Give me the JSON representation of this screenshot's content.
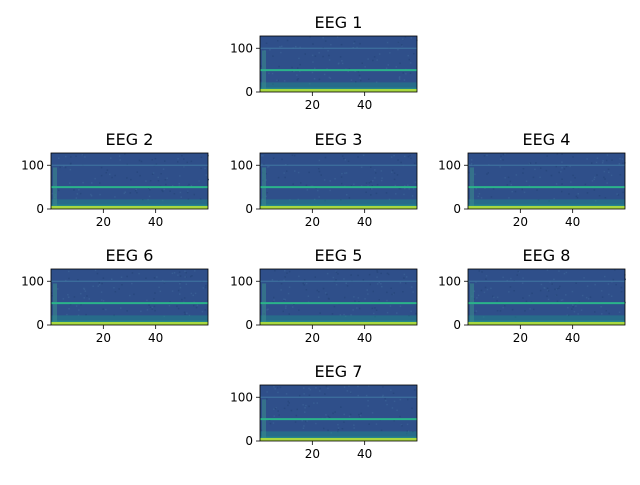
{
  "chart_data": [
    {
      "type": "heatmap",
      "title": "EEG 1",
      "xticks": [
        20,
        40
      ],
      "yticks": [
        0,
        100
      ],
      "xlim": [
        0,
        60
      ],
      "ylim": [
        0,
        128
      ],
      "line_hz": [
        50,
        100
      ],
      "colormap": "viridis"
    },
    {
      "type": "heatmap",
      "title": "EEG 2",
      "xticks": [
        20,
        40
      ],
      "yticks": [
        0,
        100
      ],
      "xlim": [
        0,
        60
      ],
      "ylim": [
        0,
        128
      ],
      "line_hz": [
        50,
        100
      ],
      "colormap": "viridis"
    },
    {
      "type": "heatmap",
      "title": "EEG 3",
      "xticks": [
        20,
        40
      ],
      "yticks": [
        0,
        100
      ],
      "xlim": [
        0,
        60
      ],
      "ylim": [
        0,
        128
      ],
      "line_hz": [
        50,
        100
      ],
      "colormap": "viridis"
    },
    {
      "type": "heatmap",
      "title": "EEG 4",
      "xticks": [
        20,
        40
      ],
      "yticks": [
        0,
        100
      ],
      "xlim": [
        0,
        60
      ],
      "ylim": [
        0,
        128
      ],
      "line_hz": [
        50,
        100
      ],
      "colormap": "viridis"
    },
    {
      "type": "heatmap",
      "title": "EEG 6",
      "xticks": [
        20,
        40
      ],
      "yticks": [
        0,
        100
      ],
      "xlim": [
        0,
        60
      ],
      "ylim": [
        0,
        128
      ],
      "line_hz": [
        50,
        100
      ],
      "colormap": "viridis"
    },
    {
      "type": "heatmap",
      "title": "EEG 5",
      "xticks": [
        20,
        40
      ],
      "yticks": [
        0,
        100
      ],
      "xlim": [
        0,
        60
      ],
      "ylim": [
        0,
        128
      ],
      "line_hz": [
        50,
        100
      ],
      "colormap": "viridis"
    },
    {
      "type": "heatmap",
      "title": "EEG 8",
      "xticks": [
        20,
        40
      ],
      "yticks": [
        0,
        100
      ],
      "xlim": [
        0,
        60
      ],
      "ylim": [
        0,
        128
      ],
      "line_hz": [
        50,
        100
      ],
      "colormap": "viridis"
    },
    {
      "type": "heatmap",
      "title": "EEG 7",
      "xticks": [
        20,
        40
      ],
      "yticks": [
        0,
        100
      ],
      "xlim": [
        0,
        60
      ],
      "ylim": [
        0,
        128
      ],
      "line_hz": [
        50,
        100
      ],
      "colormap": "viridis"
    }
  ],
  "colors": {
    "background": "#2f4f8a",
    "line_50": "#2bb38a",
    "line_100": "#3f74a0",
    "low_band": "#1f8f8a",
    "dc_band": "#a8d840",
    "onset": "#3b8e8c"
  }
}
